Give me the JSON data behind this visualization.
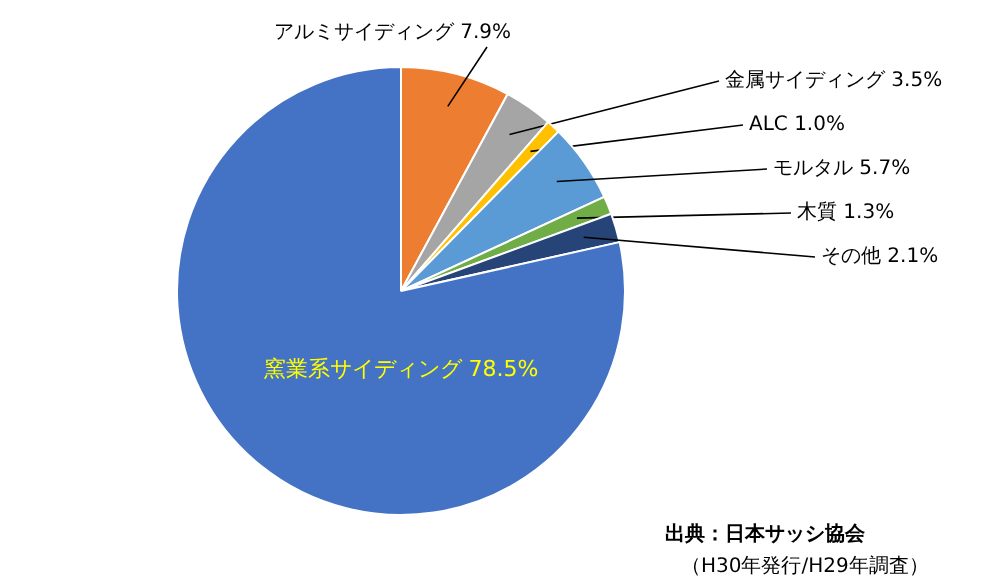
{
  "chart_data": {
    "type": "pie",
    "categories": [
      "アルミサイディング",
      "金属サイディング",
      "ALC",
      "モルタル",
      "木質",
      "その他",
      "窯業系サイディング"
    ],
    "values": [
      7.9,
      3.5,
      1.0,
      5.7,
      1.3,
      2.1,
      78.5
    ],
    "value_labels": [
      "7.9%",
      "3.5%",
      "1.0%",
      "5.7%",
      "1.3%",
      "2.1%",
      "78.5%"
    ],
    "colors": [
      "#ed7d31",
      "#a5a5a5",
      "#ffc000",
      "#5b9bd5",
      "#70ad47",
      "#264478",
      "#4472c4"
    ],
    "annotations": [
      "出典：日本サッシ協会",
      "（H30年発行/H29年調査）"
    ]
  }
}
